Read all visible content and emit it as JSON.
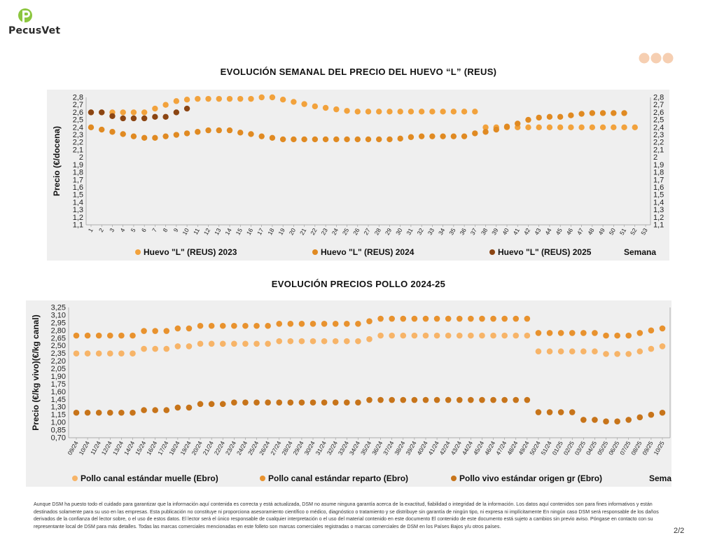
{
  "brand": {
    "name": "PecusVet",
    "accent": "#8cc63f"
  },
  "footer": {
    "disclaimer": "Aunque DSM ha puesto todo el cuidado para garantizar que la información aquí contenida es correcta y está actualizada, DSM no asume ninguna garantía acerca de la exactitud, fiabilidad o integridad de la información. Los datos aquí contenidos son para fines informativos y están destinados solamente para su uso en las empresas. Esta publicación no constituye ni proporciona asesoramiento científico o médico, diagnóstico o tratamiento y se distribuye sin garantía de ningún tipo, ni expresa ni implícitamente En ningún caso DSM será responsable de los daños derivados de la confianza del lector sobre, o el uso de estos datos. El lector será el único responsable de cualquier interpretación o el uso del material contenido en este documento El contenido de este documento está sujeto a cambios sin previo aviso. Póngase en contacto con su representante local de DSM para más detalles. Todas las marcas comerciales mencionadas en este folleto son marcas comerciales registradas o marcas comerciales de DSM en los Países Bajos y/u otros países.",
    "page": "2/2"
  },
  "chart_data": [
    {
      "type": "scatter",
      "title": "EVOLUCIÓN SEMANAL DEL PRECIO DEL HUEVO “L” (REUS)",
      "ylabel": "Precio (€/docena)",
      "xlabel": "Semana",
      "ylim": [
        1.1,
        2.8
      ],
      "yticks": [
        "2,8",
        "2,7",
        "2,6",
        "2,5",
        "2,4",
        "2,3",
        "2,2",
        "2,1",
        "2",
        "1,9",
        "1,8",
        "1,7",
        "1,6",
        "1,5",
        "1,4",
        "1,3",
        "1,2",
        "1,1"
      ],
      "categories": [
        "1",
        "2",
        "3",
        "4",
        "5",
        "6",
        "7",
        "8",
        "9",
        "10",
        "11",
        "12",
        "13",
        "14",
        "15",
        "16",
        "17",
        "18",
        "19",
        "20",
        "21",
        "22",
        "23",
        "24",
        "25",
        "26",
        "27",
        "28",
        "29",
        "30",
        "31",
        "32",
        "33",
        "34",
        "35",
        "36",
        "37",
        "38",
        "39",
        "40",
        "41",
        "42",
        "43",
        "44",
        "45",
        "46",
        "47",
        "48",
        "49",
        "50",
        "51",
        "52",
        "53"
      ],
      "legend_position": "bottom",
      "series": [
        {
          "name": "Huevo \"L\" (REUS) 2023",
          "color": "#f2a23c",
          "values": [
            2.6,
            2.6,
            2.6,
            2.6,
            2.6,
            2.6,
            2.65,
            2.7,
            2.75,
            2.77,
            2.78,
            2.78,
            2.78,
            2.78,
            2.78,
            2.78,
            2.8,
            2.8,
            2.77,
            2.74,
            2.71,
            2.68,
            2.66,
            2.64,
            2.62,
            2.61,
            2.61,
            2.61,
            2.61,
            2.61,
            2.61,
            2.61,
            2.61,
            2.61,
            2.61,
            2.61,
            2.61,
            2.4,
            2.4,
            2.4,
            2.4,
            2.4,
            2.4,
            2.4,
            2.4,
            2.4,
            2.4,
            2.4,
            2.4,
            2.4,
            2.4,
            2.4,
            null
          ]
        },
        {
          "name": "Huevo \"L\" (REUS) 2024",
          "color": "#e08a22",
          "values": [
            2.4,
            2.37,
            2.34,
            2.31,
            2.28,
            2.26,
            2.26,
            2.28,
            2.3,
            2.32,
            2.34,
            2.36,
            2.36,
            2.36,
            2.33,
            2.31,
            2.28,
            2.26,
            2.24,
            2.24,
            2.24,
            2.24,
            2.24,
            2.24,
            2.24,
            2.24,
            2.24,
            2.24,
            2.24,
            2.25,
            2.27,
            2.28,
            2.28,
            2.28,
            2.28,
            2.28,
            2.32,
            2.34,
            2.37,
            2.41,
            2.45,
            2.5,
            2.53,
            2.54,
            2.54,
            2.56,
            2.58,
            2.59,
            2.59,
            2.59,
            2.59,
            null,
            null
          ]
        },
        {
          "name": "Huevo \"L\" (REUS) 2025",
          "color": "#8b4513",
          "values": [
            2.6,
            2.6,
            2.55,
            2.52,
            2.52,
            2.52,
            2.54,
            2.54,
            2.6,
            2.65,
            null,
            null,
            null,
            null,
            null,
            null,
            null,
            null,
            null,
            null,
            null,
            null,
            null,
            null,
            null,
            null,
            null,
            null,
            null,
            null,
            null,
            null,
            null,
            null,
            null,
            null,
            null,
            null,
            null,
            null,
            null,
            null,
            null,
            null,
            null,
            null,
            null,
            null,
            null,
            null,
            null,
            null,
            null
          ]
        }
      ]
    },
    {
      "type": "scatter",
      "title": "EVOLUCIÓN PRECIOS POLLO 2024-25",
      "ylabel": "Precio (€/kg vivo)(€/kg canal)",
      "xlabel": "Semana",
      "ylim": [
        0.7,
        3.25
      ],
      "yticks": [
        "3,25",
        "3,10",
        "2,95",
        "2,80",
        "2,65",
        "2,50",
        "2,35",
        "2,20",
        "2,05",
        "1,90",
        "1,75",
        "1,60",
        "1,45",
        "1,30",
        "1,15",
        "1,00",
        "0,85",
        "0,70"
      ],
      "categories": [
        "09/24",
        "10/24",
        "11/24",
        "12/24",
        "13/24",
        "14/24",
        "15/24",
        "16/24",
        "17/24",
        "18/24",
        "19/24",
        "20/24",
        "21/24",
        "22/24",
        "23/24",
        "24/24",
        "25/24",
        "26/24",
        "27/24",
        "28/24",
        "29/24",
        "30/24",
        "31/24",
        "32/24",
        "33/24",
        "34/24",
        "35/24",
        "36/24",
        "37/24",
        "38/24",
        "39/24",
        "40/24",
        "41/24",
        "42/24",
        "43/24",
        "44/24",
        "45/24",
        "46/24",
        "47/24",
        "48/24",
        "49/24",
        "50/24",
        "51/24",
        "01/25",
        "02/25",
        "03/25",
        "04/25",
        "05/25",
        "06/25",
        "07/25",
        "08/25",
        "09/25",
        "10/25"
      ],
      "legend_position": "bottom",
      "series": [
        {
          "name": "Pollo canal estándar muelle (Ebro)",
          "color": "#f7b468",
          "values": [
            2.35,
            2.35,
            2.35,
            2.35,
            2.35,
            2.35,
            2.44,
            2.44,
            2.44,
            2.49,
            2.49,
            2.54,
            2.54,
            2.54,
            2.54,
            2.54,
            2.54,
            2.54,
            2.59,
            2.59,
            2.59,
            2.59,
            2.59,
            2.59,
            2.59,
            2.59,
            2.63,
            2.7,
            2.7,
            2.7,
            2.7,
            2.7,
            2.7,
            2.7,
            2.7,
            2.7,
            2.7,
            2.7,
            2.7,
            2.7,
            2.7,
            2.39,
            2.39,
            2.39,
            2.39,
            2.39,
            2.39,
            2.34,
            2.34,
            2.34,
            2.39,
            2.44,
            2.49
          ]
        },
        {
          "name": "Pollo canal estándar reparto (Ebro)",
          "color": "#e8922e",
          "values": [
            2.7,
            2.7,
            2.7,
            2.7,
            2.7,
            2.7,
            2.79,
            2.79,
            2.79,
            2.84,
            2.84,
            2.89,
            2.89,
            2.89,
            2.89,
            2.89,
            2.89,
            2.89,
            2.93,
            2.93,
            2.93,
            2.93,
            2.93,
            2.93,
            2.93,
            2.93,
            2.98,
            3.03,
            3.03,
            3.03,
            3.03,
            3.03,
            3.03,
            3.03,
            3.03,
            3.03,
            3.03,
            3.03,
            3.03,
            3.03,
            3.03,
            2.75,
            2.75,
            2.75,
            2.75,
            2.75,
            2.75,
            2.7,
            2.7,
            2.7,
            2.75,
            2.8,
            2.84
          ]
        },
        {
          "name": "Pollo vivo estándar origen gr (Ebro)",
          "color": "#c7741a",
          "values": [
            1.19,
            1.19,
            1.19,
            1.19,
            1.19,
            1.19,
            1.24,
            1.24,
            1.24,
            1.29,
            1.29,
            1.36,
            1.36,
            1.36,
            1.39,
            1.39,
            1.39,
            1.39,
            1.39,
            1.39,
            1.39,
            1.39,
            1.39,
            1.39,
            1.39,
            1.39,
            1.44,
            1.44,
            1.44,
            1.44,
            1.44,
            1.44,
            1.44,
            1.44,
            1.44,
            1.44,
            1.44,
            1.44,
            1.44,
            1.44,
            1.44,
            1.2,
            1.2,
            1.2,
            1.2,
            1.05,
            1.05,
            1.02,
            1.02,
            1.05,
            1.1,
            1.15,
            1.19
          ]
        }
      ]
    }
  ]
}
